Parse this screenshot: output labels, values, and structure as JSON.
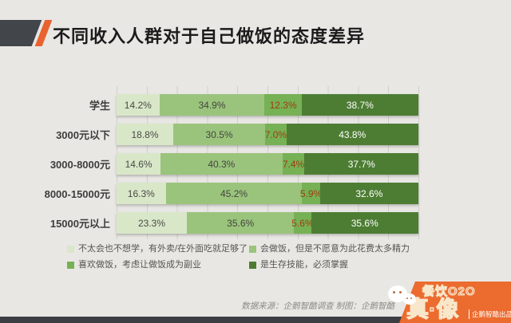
{
  "title": "不同收入人群对于自己做饭的态度差异",
  "chart_data": {
    "type": "bar",
    "variant": "horizontal-stacked-100-percent",
    "title": "不同收入人群对于自己做饭的态度差异",
    "categories": [
      "学生",
      "3000元以下",
      "3000-8000元",
      "8000-15000元",
      "15000元以上"
    ],
    "unit": "%",
    "xlim": [
      0,
      100
    ],
    "grid": "faint-vertical-every-10pct",
    "legend_position": "bottom",
    "series": [
      {
        "name": "不太会也不想学，有外卖/在外面吃就足够了",
        "color": "#d9e7c9",
        "label_color": "#4a4a45",
        "values": [
          14.2,
          18.8,
          14.6,
          16.3,
          23.3
        ]
      },
      {
        "name": "会做饭，但是不愿意为此花费太多精力",
        "color": "#9ac47c",
        "label_color": "#45453f",
        "values": [
          34.9,
          30.5,
          40.3,
          45.2,
          35.6
        ]
      },
      {
        "name": "喜欢做饭，考虑让做饭成为副业",
        "color": "#76b155",
        "label_color": "#9e3c10",
        "values": [
          12.3,
          7.0,
          7.4,
          5.9,
          5.6
        ]
      },
      {
        "name": "是生存技能，必须掌握",
        "color": "#4d7d33",
        "label_color": "#ffffff",
        "values": [
          38.7,
          43.8,
          37.7,
          32.6,
          35.6
        ]
      }
    ]
  },
  "footer": {
    "source": "数据来源：企鹅智酷调查  制图：企鹅智酷"
  },
  "logo": {
    "brand_top": "餐饮O2O",
    "brand_main": "真·像",
    "byline": "企鹅智酷出品"
  },
  "colors": {
    "background": "#e9e7e4",
    "accent_orange": "#ec6b2e",
    "slash_dark": "#42454a",
    "bottom_bar": "#3a3d42",
    "title_text": "#1b1b1b"
  }
}
